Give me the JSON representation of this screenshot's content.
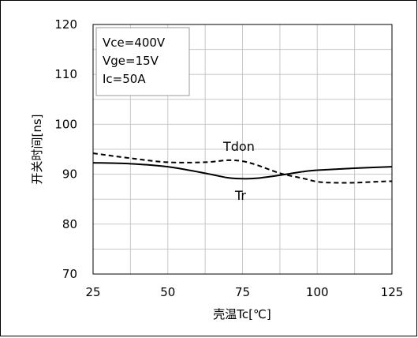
{
  "chart_data": {
    "type": "line",
    "xlabel": "壳温Tc[℃]",
    "ylabel": "开关时间[ns]",
    "xlim": [
      25,
      125
    ],
    "ylim": [
      70,
      120
    ],
    "x_ticks": [
      "25",
      "50",
      "75",
      "100",
      "125"
    ],
    "y_ticks": [
      "70",
      "80",
      "90",
      "100",
      "110",
      "120"
    ],
    "grid": true,
    "conditions": [
      "Vce=400V",
      "Vge=15V",
      "Ic=50A"
    ],
    "series": [
      {
        "name": "Tdon",
        "style": "dashed",
        "color": "#000000",
        "x": [
          25,
          37.5,
          50,
          62.5,
          70,
          75,
          80,
          87.5,
          95,
          100,
          105,
          112.5,
          120,
          125
        ],
        "y": [
          94.2,
          93.2,
          92.4,
          92.4,
          92.8,
          92.6,
          91.8,
          90.2,
          89.2,
          88.5,
          88.3,
          88.3,
          88.5,
          88.6
        ]
      },
      {
        "name": "Tr",
        "style": "solid",
        "color": "#000000",
        "x": [
          25,
          37.5,
          50,
          62.5,
          70,
          75,
          80,
          87.5,
          95,
          100,
          112.5,
          125
        ],
        "y": [
          92.3,
          92.1,
          91.5,
          90.2,
          89.3,
          89.1,
          89.2,
          89.8,
          90.5,
          90.8,
          91.2,
          91.5
        ]
      }
    ]
  }
}
